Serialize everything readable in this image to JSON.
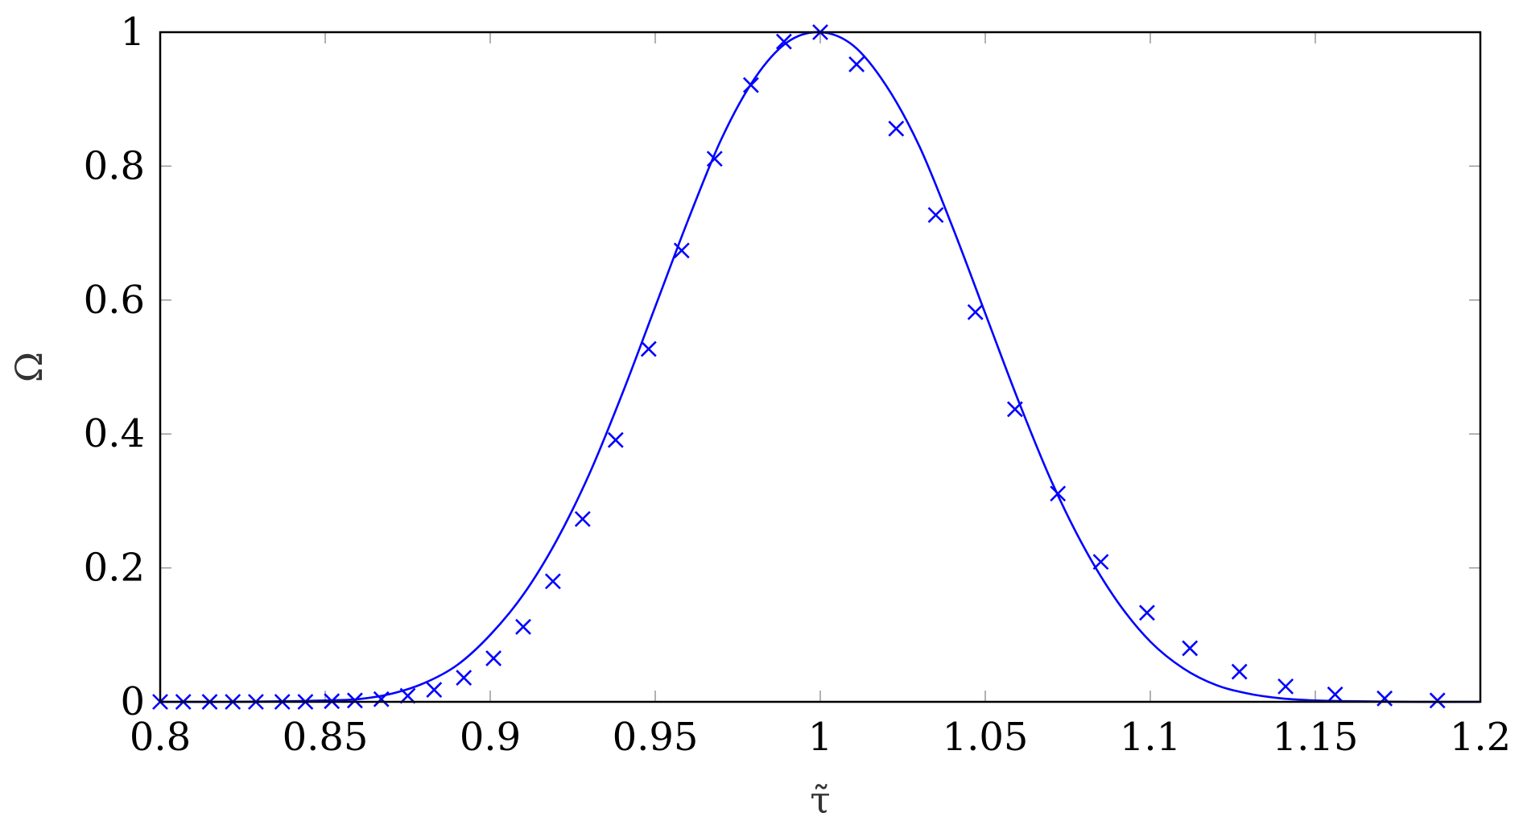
{
  "chart_data": {
    "type": "line",
    "xlabel": "τ̃",
    "ylabel": "Ω",
    "xlim": [
      0.8,
      1.2
    ],
    "ylim": [
      0,
      1
    ],
    "xticks": [
      0.8,
      0.85,
      0.9,
      0.95,
      1,
      1.05,
      1.1,
      1.15,
      1.2
    ],
    "yticks": [
      0,
      0.2,
      0.4,
      0.6,
      0.8,
      1
    ],
    "xtick_labels": [
      "0.8",
      "0.85",
      "0.9",
      "0.95",
      "1",
      "1.05",
      "1.1",
      "1.15",
      "1.2"
    ],
    "ytick_labels": [
      "0",
      "0.2",
      "0.4",
      "0.6",
      "0.8",
      "1"
    ],
    "grid": "ticks",
    "series": [
      {
        "style": "line",
        "color": "#0000ff",
        "x": [
          0.8,
          0.82,
          0.84,
          0.85,
          0.86,
          0.87,
          0.88,
          0.89,
          0.9,
          0.91,
          0.92,
          0.93,
          0.94,
          0.95,
          0.96,
          0.97,
          0.98,
          0.99,
          1.0,
          1.01,
          1.02,
          1.03,
          1.04,
          1.05,
          1.06,
          1.07,
          1.08,
          1.09,
          1.1,
          1.11,
          1.12,
          1.13,
          1.14,
          1.15,
          1.16,
          1.18,
          1.2
        ],
        "y": [
          0.0,
          0.0,
          0.001,
          0.002,
          0.004,
          0.012,
          0.028,
          0.055,
          0.1,
          0.16,
          0.24,
          0.34,
          0.46,
          0.59,
          0.72,
          0.84,
          0.93,
          0.985,
          1.0,
          0.98,
          0.92,
          0.83,
          0.71,
          0.58,
          0.45,
          0.33,
          0.23,
          0.15,
          0.09,
          0.05,
          0.025,
          0.012,
          0.005,
          0.002,
          0.001,
          0.0,
          0.0
        ]
      },
      {
        "style": "markers",
        "marker": "x",
        "color": "#0000ff",
        "x": [
          0.8,
          0.807,
          0.815,
          0.822,
          0.829,
          0.837,
          0.844,
          0.852,
          0.859,
          0.867,
          0.875,
          0.883,
          0.892,
          0.901,
          0.91,
          0.919,
          0.928,
          0.938,
          0.948,
          0.958,
          0.968,
          0.979,
          0.989,
          1.0,
          1.011,
          1.023,
          1.035,
          1.047,
          1.059,
          1.072,
          1.085,
          1.099,
          1.112,
          1.127,
          1.141,
          1.156,
          1.171,
          1.187
        ],
        "y": [
          0.0,
          0.0,
          0.0,
          0.0,
          0.0,
          0.0,
          0.0,
          0.001,
          0.002,
          0.004,
          0.009,
          0.018,
          0.036,
          0.065,
          0.112,
          0.18,
          0.273,
          0.391,
          0.527,
          0.674,
          0.811,
          0.921,
          0.986,
          1.0,
          0.952,
          0.856,
          0.727,
          0.582,
          0.437,
          0.311,
          0.209,
          0.133,
          0.08,
          0.045,
          0.023,
          0.011,
          0.005,
          0.002
        ]
      }
    ]
  }
}
